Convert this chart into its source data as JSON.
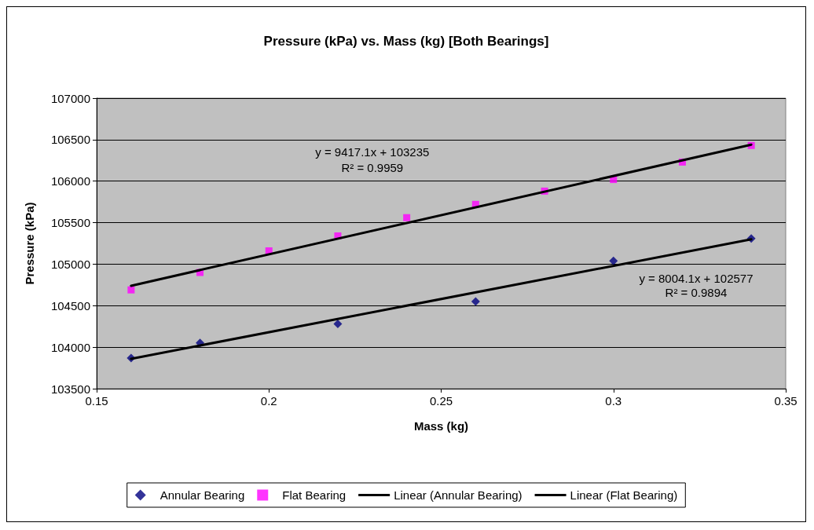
{
  "chart_data": {
    "type": "scatter",
    "title": "Pressure (kPa) vs. Mass (kg) [Both Bearings]",
    "xlabel": "Mass (kg)",
    "ylabel": "Pressure (kPa)",
    "xlim": [
      0.15,
      0.35
    ],
    "xticks": [
      0.15,
      0.2,
      0.25,
      0.3,
      0.35
    ],
    "ylim": [
      103500,
      107000
    ],
    "yticks": [
      103500,
      104000,
      104500,
      105000,
      105500,
      106000,
      106500,
      107000
    ],
    "grid": "y",
    "legend": "bottom",
    "series": [
      {
        "name": "Annular Bearing",
        "type": "scatter",
        "marker": "diamond",
        "color": "#000080",
        "x": [
          0.16,
          0.18,
          0.22,
          0.26,
          0.3,
          0.34
        ],
        "values": [
          103870,
          104050,
          104280,
          104550,
          105040,
          105310
        ]
      },
      {
        "name": "Flat Bearing",
        "type": "scatter",
        "marker": "square",
        "color": "#ff00ff",
        "x": [
          0.16,
          0.18,
          0.2,
          0.22,
          0.24,
          0.26,
          0.28,
          0.3,
          0.32,
          0.34
        ],
        "values": [
          104690,
          104900,
          105160,
          105340,
          105560,
          105720,
          105880,
          106020,
          106230,
          106430
        ]
      },
      {
        "name": "Linear (Annular Bearing)",
        "type": "line",
        "marker": "none",
        "color": "#000000",
        "x": [
          0.16,
          0.34
        ],
        "values": [
          103860,
          105300
        ]
      },
      {
        "name": "Linear (Flat Bearing)",
        "type": "line",
        "marker": "none",
        "color": "#000000",
        "x": [
          0.16,
          0.34
        ],
        "values": [
          104740,
          106440
        ]
      }
    ],
    "annotations": [
      "y = 9417.1x + 103235",
      "R² = 0.9959",
      "y = 8004.1x + 102577",
      "R² = 0.9894"
    ]
  }
}
